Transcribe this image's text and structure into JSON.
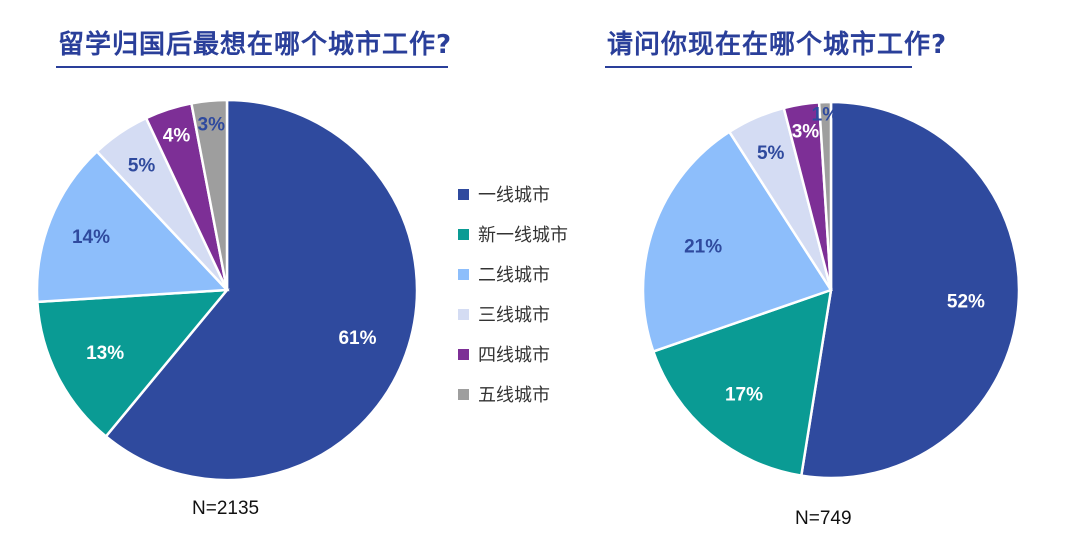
{
  "chart_data": [
    {
      "type": "pie",
      "title": "留学归国后最想在哪个城市工作?",
      "sample_size": "N=2135",
      "labels": [
        "一线城市",
        "新一线城市",
        "二线城市",
        "三线城市",
        "四线城市",
        "五线城市"
      ],
      "values": [
        61,
        13,
        14,
        5,
        4,
        3
      ],
      "value_labels": [
        "61%",
        "13%",
        "14%",
        "5%",
        "4%",
        "3%"
      ],
      "start": "12 o'clock, clockwise"
    },
    {
      "type": "pie",
      "title": "请问你现在在哪个城市工作?",
      "sample_size": "N=749",
      "labels": [
        "一线城市",
        "新一线城市",
        "二线城市",
        "三线城市",
        "四线城市",
        "五线城市"
      ],
      "values": [
        52,
        17,
        21,
        5,
        3,
        1
      ],
      "value_labels": [
        "52%",
        "17%",
        "21%",
        "5%",
        "3%",
        "1%"
      ],
      "start": "12 o'clock, clockwise"
    }
  ],
  "legend": {
    "items": [
      {
        "label": "一线城市",
        "color": "#2f4a9e"
      },
      {
        "label": "新一线城市",
        "color": "#0a9b94"
      },
      {
        "label": "二线城市",
        "color": "#8dbefb"
      },
      {
        "label": "三线城市",
        "color": "#d4dcf3"
      },
      {
        "label": "四线城市",
        "color": "#7d2f96"
      },
      {
        "label": "五线城市",
        "color": "#9e9e9e"
      }
    ]
  },
  "label_colors": [
    "#ffffff",
    "#ffffff",
    "#2f4a9e",
    "#2f4a9e",
    "#ffffff",
    "#2f4a9e"
  ]
}
